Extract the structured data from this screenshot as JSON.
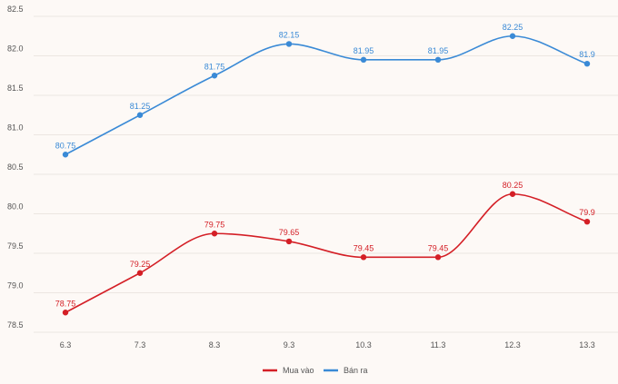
{
  "chart_data": {
    "type": "line",
    "categories": [
      "6.3",
      "7.3",
      "8.3",
      "9.3",
      "10.3",
      "11.3",
      "12.3",
      "13.3"
    ],
    "series": [
      {
        "name": "Bán ra",
        "color": "#3a8ad6",
        "values": [
          80.75,
          81.25,
          81.75,
          82.15,
          81.95,
          81.95,
          82.25,
          81.9
        ],
        "labels": [
          "80.75",
          "81.25",
          "81.75",
          "82.15",
          "81.95",
          "81.95",
          "82.25",
          "81.9"
        ]
      },
      {
        "name": "Mua vào",
        "color": "#d41f26",
        "values": [
          78.75,
          79.25,
          79.75,
          79.65,
          79.45,
          79.45,
          80.25,
          79.9
        ],
        "labels": [
          "78.75",
          "79.25",
          "79.75",
          "79.65",
          "79.45",
          "79.45",
          "80.25",
          "79.9"
        ]
      }
    ],
    "yticks": [
      "78.5",
      "79.0",
      "79.5",
      "80.0",
      "80.5",
      "81.0",
      "81.5",
      "82.0",
      "82.5"
    ],
    "ylim": [
      78.5,
      82.5
    ],
    "grid": true,
    "legend_position": "bottom-center",
    "legend_order": [
      "Mua vào",
      "Bán ra"
    ],
    "title": "",
    "xlabel": "",
    "ylabel": ""
  }
}
